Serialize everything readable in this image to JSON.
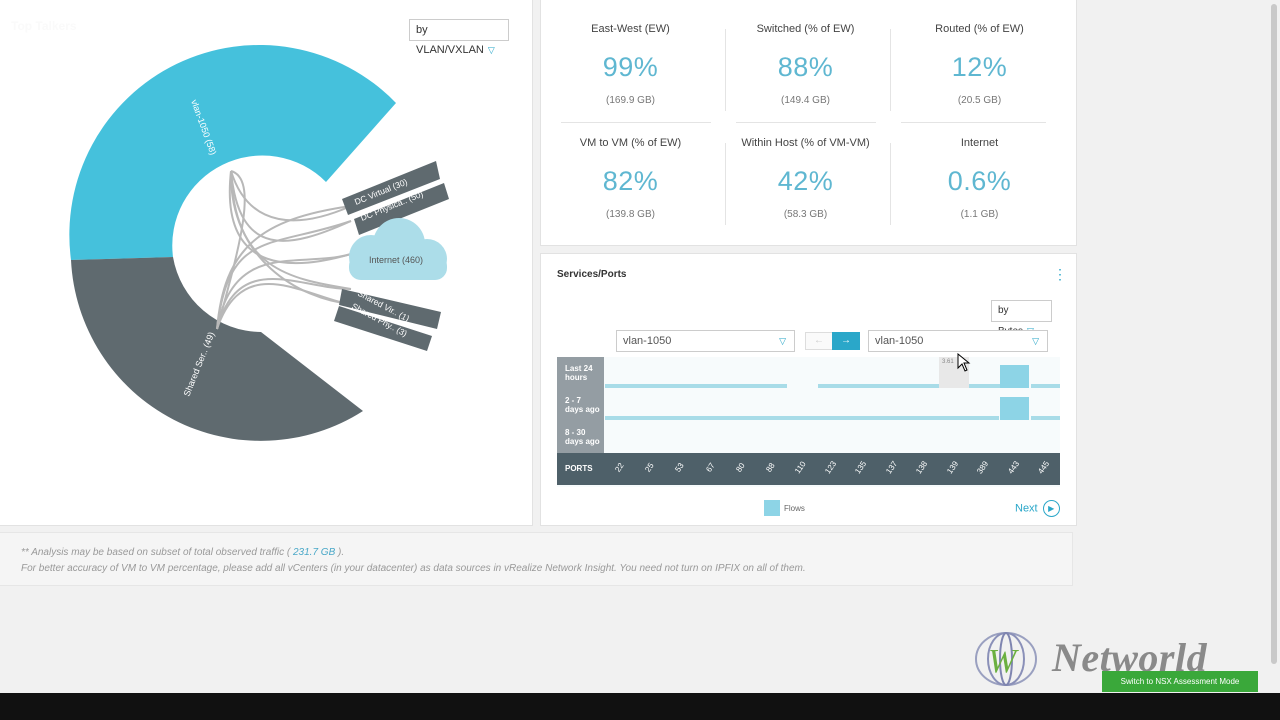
{
  "left_panel": {
    "title": "Top Talkers",
    "group_by": "by VLAN/VXLAN",
    "segments": {
      "vlan": "vlan-1050 (58)",
      "shared_services": "Shared Ser.. (49)",
      "dc_virtual": "DC Virtual (30)",
      "dc_physical": "DC Physica.. (50)",
      "internet": "Internet (460)",
      "shared_vir": "Shared Vir.. (1)",
      "shared_phy": "Shared Phy.. (3)"
    }
  },
  "stats": [
    {
      "label": "East-West (EW)",
      "value": "99%",
      "sub": "(169.9 GB)"
    },
    {
      "label": "Switched (% of EW)",
      "value": "88%",
      "sub": "(149.4 GB)"
    },
    {
      "label": "Routed (% of EW)",
      "value": "12%",
      "sub": "(20.5 GB)"
    },
    {
      "label": "VM to VM (% of EW)",
      "value": "82%",
      "sub": "(139.8 GB)"
    },
    {
      "label": "Within Host (% of VM-VM)",
      "value": "42%",
      "sub": "(58.3 GB)"
    },
    {
      "label": "Internet",
      "value": "0.6%",
      "sub": "(1.1 GB)"
    }
  ],
  "services": {
    "title": "Services/Ports",
    "more": "⋮",
    "metric": "by Bytes",
    "source_select": "vlan-1050",
    "dest_select": "vlan-1050",
    "prev_icon": "←",
    "next_icon": "→",
    "tooltip": "3.61",
    "rows": [
      {
        "line1": "Last 24",
        "line2": "hours"
      },
      {
        "line1": "2 - 7",
        "line2": "days ago"
      },
      {
        "line1": "8 - 30",
        "line2": "days ago"
      }
    ],
    "ports_label": "PORTS",
    "ports": [
      "22",
      "25",
      "53",
      "67",
      "80",
      "88",
      "110",
      "123",
      "135",
      "137",
      "138",
      "139",
      "389",
      "443",
      "445"
    ],
    "legend": "Flows",
    "next_label": "Next"
  },
  "note": {
    "line1_prefix": "** Analysis may be based on subset of total observed traffic (",
    "line1_value": " 231.7 GB ",
    "line1_suffix": ").",
    "line2": "For better accuracy of VM to VM percentage, please add all vCenters (in your datacenter) as data sources in vRealize Network Insight. You need not turn on IPFIX on all of them."
  },
  "watermark": "Networld",
  "nsx_button": "Switch to NSX Assessment Mode",
  "colors": {
    "accent": "#45c1dc",
    "dark": "#5f6a6f",
    "green": "#3aa83a"
  }
}
